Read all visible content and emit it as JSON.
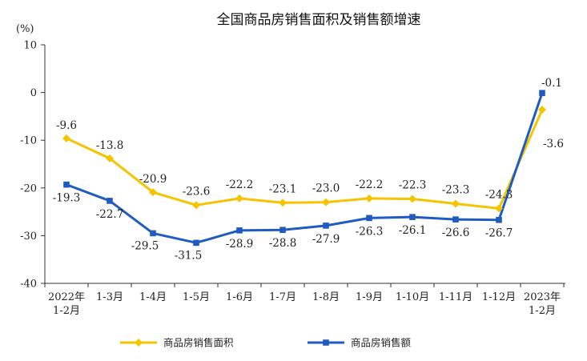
{
  "chart_data": {
    "type": "line",
    "title": "全国商品房销售面积及销售额增速",
    "y_unit": "(%)",
    "ylim": [
      -40,
      10
    ],
    "yticks": [
      "10",
      "0",
      "-10",
      "-20",
      "-30",
      "-40"
    ],
    "categories": [
      [
        "2022年",
        "1-2月"
      ],
      [
        "1-3月"
      ],
      [
        "1-4月"
      ],
      [
        "1-5月"
      ],
      [
        "1-6月"
      ],
      [
        "1-7月"
      ],
      [
        "1-8月"
      ],
      [
        "1-9月"
      ],
      [
        "1-10月"
      ],
      [
        "1-11月"
      ],
      [
        "1-12月"
      ],
      [
        "2023年",
        "1-2月"
      ]
    ],
    "series": [
      {
        "name": "商品房销售面积",
        "color": "#F5C400",
        "marker": "diamond",
        "values": [
          -9.6,
          -13.8,
          -20.9,
          -23.6,
          -22.2,
          -23.1,
          -23.0,
          -22.2,
          -22.3,
          -23.3,
          -24.3,
          -3.6
        ],
        "labels": [
          "-9.6",
          "-13.8",
          "-20.9",
          "-23.6",
          "-22.2",
          "-23.1",
          "-23.0",
          "-22.2",
          "-22.3",
          "-23.3",
          "-24.3",
          "-3.6"
        ]
      },
      {
        "name": "商品房销售额",
        "color": "#1F5BC0",
        "marker": "square",
        "values": [
          -19.3,
          -22.7,
          -29.5,
          -31.5,
          -28.9,
          -28.8,
          -27.9,
          -26.3,
          -26.1,
          -26.6,
          -26.7,
          -0.1
        ],
        "labels": [
          "-19.3",
          "-22.7",
          "-29.5",
          "-31.5",
          "-28.9",
          "-28.8",
          "-27.9",
          "-26.3",
          "-26.1",
          "-26.6",
          "-26.7",
          "-0.1"
        ]
      }
    ],
    "grid": false,
    "legend_position": "bottom"
  }
}
